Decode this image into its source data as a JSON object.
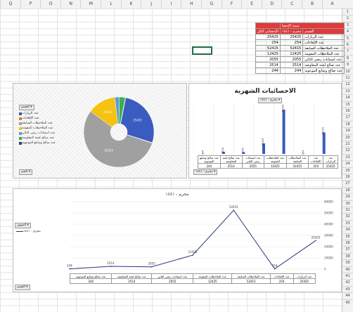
{
  "columns": [
    "Q",
    "P",
    "O",
    "N",
    "M",
    "L",
    "K",
    "J",
    "I",
    "H",
    "G",
    "F",
    "E",
    "D",
    "C",
    "B",
    "A"
  ],
  "rows": [
    "1",
    "2",
    "3",
    "4",
    "5",
    "6",
    "7",
    "8",
    "9",
    "10",
    "11",
    "12",
    "13",
    "14",
    "15",
    "16",
    "17",
    "18",
    "19",
    "20",
    "21",
    "22",
    "23",
    "24",
    "25",
    "26",
    "27",
    "28",
    "29",
    "30",
    "31",
    "32",
    "33",
    "34",
    "35",
    "36",
    "37",
    "38",
    "39",
    "40",
    "41",
    "42",
    "43",
    "44",
    "45"
  ],
  "table": {
    "header_top": "نسبة الإحصا",
    "header_a": "القسم",
    "header_b": "محرم - ١٤٤١",
    "header_c": "الإحصائي الكل",
    "rows": [
      {
        "label": "عدد الزيارات",
        "b": "25425",
        "c": "25425"
      },
      {
        "label": "عدد الإلغاءات",
        "b": "254",
        "c": "254"
      },
      {
        "label": "عدد الملاحظات السابقة",
        "b": "52415",
        "c": "52415"
      },
      {
        "label": "عدد الملاحظات المقومة",
        "b": "12425",
        "c": "12425"
      },
      {
        "label": "عدد استيانات رضى النائي",
        "b": "2055",
        "c": "2055"
      },
      {
        "label": "عدد صالح لجنة المعاوضة",
        "b": "2514",
        "c": "2514"
      },
      {
        "label": "عدد صالح ومتابع الموعوية",
        "b": "244",
        "c": "244"
      }
    ]
  },
  "bar_panel": {
    "title": "الاحصائيات الشهرية",
    "filter_label": "محرم - ١٤٤١",
    "series_label": "محرم - ١٤٤١",
    "dropdown": "محرم - ١٤٤١"
  },
  "pie_panel": {
    "legend_title": "القسم",
    "filter": "القيم"
  },
  "line_panel": {
    "title": "محرم - ١٤٤١",
    "legend_title": "الشهور",
    "legend_item": "محرم - ١٤٤١",
    "dropdown": "القسم"
  },
  "chart_data": [
    {
      "type": "bar",
      "title": "الاحصائيات الشهرية",
      "categories": [
        "عدد الزيارات",
        "عدد الإلغاءات",
        "عدد الملاحظات السابقة",
        "عدد الملاحظات المقومة",
        "عدد استيانات رضى النائي",
        "عدد صالح لجنة المعاوضة",
        "عدد صالح ومتابع الموعوية"
      ],
      "series": [
        {
          "name": "محرم - ١٤٤١",
          "values": [
            25425,
            254,
            52415,
            12425,
            2055,
            2514,
            244
          ]
        }
      ],
      "colors": [
        "#3a5bbf"
      ]
    },
    {
      "type": "pie",
      "categories": [
        "عدد الزيارات",
        "عدد الإلغاءات",
        "عدد الملاحظات السابقة",
        "عدد الملاحظات المقومة",
        "عدد استيانات رضى النائي",
        "عدد صالح لجنة المعاوضة",
        "عدد صالح ومتابع الموعوية"
      ],
      "values": [
        25425,
        254,
        52415,
        12425,
        2055,
        2514,
        244
      ],
      "colors": [
        "#3a5bbf",
        "#e07b2c",
        "#a0a0a0",
        "#f5c211",
        "#5b9bd5",
        "#3cae4a",
        "#264478"
      ]
    },
    {
      "type": "line",
      "title": "محرم - ١٤٤١",
      "categories": [
        "عدد صالح ومتابع الموعوية",
        "عدد صالح لجنة المعاوضة",
        "عدد استيانات رضى النائي",
        "عدد الملاحظات المقومة",
        "عدد الملاحظات السابقة",
        "عدد الإلغاءات",
        "عدد الزيارات"
      ],
      "series": [
        {
          "name": "محرم - ١٤٤١",
          "values": [
            244,
            2514,
            2055,
            12425,
            52415,
            254,
            25425
          ]
        }
      ],
      "ylim": [
        0,
        60000
      ],
      "yticks": [
        "0",
        "10000",
        "20000",
        "30000",
        "40000",
        "50000",
        "60000"
      ],
      "colors": [
        "#24357a"
      ]
    }
  ]
}
